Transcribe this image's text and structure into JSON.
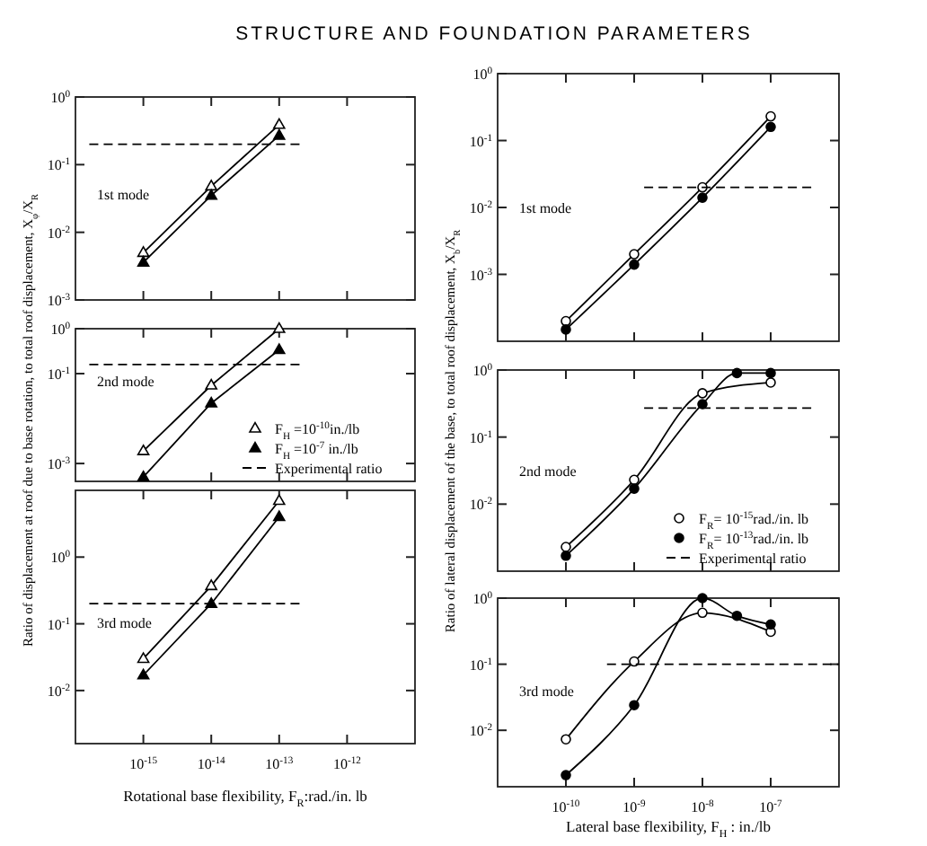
{
  "chart_data": [
    {
      "type": "line",
      "title": "STRUCTURE AND FOUNDATION PARAMETERS",
      "log": "xy",
      "xlim": [
        1e-16,
        1e-11
      ],
      "ylim": [
        0.001,
        1
      ],
      "xticks": [
        1e-15,
        1e-14,
        1e-13,
        1e-12
      ],
      "yticks": [
        {
          "value": 1,
          "label": "10$^{0}$"
        },
        {
          "value": 0.1,
          "label": "10$^{-1}$"
        },
        {
          "value": 0.01,
          "label": "10$^{-2}$"
        },
        {
          "value": 0.001,
          "label": "10$^{-3}$"
        }
      ],
      "tick_labels": "y",
      "annotations": [
        "1st mode"
      ],
      "series": [
        {
          "color": "#000000",
          "marker": "triangle",
          "x": [
            1e-15,
            1e-14,
            1e-13
          ],
          "values": [
            0.005,
            0.048,
            0.39
          ]
        },
        {
          "color": "#000000",
          "marker": "triangle",
          "x": [
            1e-15,
            1e-14,
            1e-13
          ],
          "values": [
            0.0036,
            0.035,
            0.27
          ]
        },
        {
          "color": "#000000",
          "marker": "none",
          "line_style": "dashed",
          "x": [
            1.6e-16,
            2.2e-13
          ],
          "values": [
            0.2,
            0.2
          ]
        }
      ]
    },
    {
      "type": "line",
      "log": "xy",
      "xlim": [
        1e-16,
        1e-11
      ],
      "ylim": [
        0.0004,
        1
      ],
      "xticks": [
        1e-15,
        1e-14,
        1e-13,
        1e-12
      ],
      "yticks": [
        {
          "value": 1,
          "label": "10$^{0}$"
        },
        {
          "value": 0.1,
          "label": "10$^{-1}$"
        },
        {
          "value": 0.001,
          "label": "10$^{-3}$"
        }
      ],
      "tick_labels": "y",
      "legend": "bottom right",
      "ylabel": "Ratio of displacement at roof due to base rotation, to total roof displacement, X$_{φ}$/X$_{R}$",
      "annotations": [
        "2nd mode"
      ],
      "series": [
        {
          "name": "F$_{H}$ =10$^{-10}$in./lb",
          "color": "#000000",
          "marker": "triangle",
          "x": [
            1e-15,
            1e-14,
            1e-13
          ],
          "values": [
            0.0019,
            0.055,
            1.0
          ]
        },
        {
          "name": "F$_{H}$ =10$^{-7}$ in./lb",
          "color": "#000000",
          "marker": "triangle",
          "x": [
            1e-15,
            1e-14,
            1e-13
          ],
          "values": [
            0.0005,
            0.022,
            0.34
          ]
        },
        {
          "name": "Experimental ratio",
          "color": "#000000",
          "marker": "none",
          "line_style": "dashed",
          "x": [
            1.6e-16,
            2.2e-13
          ],
          "values": [
            0.16,
            0.16
          ]
        }
      ]
    },
    {
      "type": "line",
      "log": "xy",
      "xlim": [
        1e-16,
        1e-11
      ],
      "ylim": [
        0.0016,
        10
      ],
      "xticks": [
        {
          "value": 1e-15,
          "label": "10$^{-15}$"
        },
        {
          "value": 1e-14,
          "label": "10$^{-14}$"
        },
        {
          "value": 1e-13,
          "label": "10$^{-13}$"
        },
        {
          "value": 1e-12,
          "label": "10$^{-12}$"
        }
      ],
      "yticks": [
        {
          "value": 1,
          "label": "10$^{0}$"
        },
        {
          "value": 0.1,
          "label": "10$^{-1}$"
        },
        {
          "value": 0.01,
          "label": "10$^{-2}$"
        }
      ],
      "xlabel": "Rotational base flexibility, F$_{R}$:rad./in. lb",
      "annotations": [
        "3rd mode"
      ],
      "series": [
        {
          "color": "#000000",
          "marker": "triangle",
          "x": [
            1e-15,
            1e-14,
            1e-13
          ],
          "values": [
            0.03,
            0.37,
            7
          ]
        },
        {
          "color": "#000000",
          "marker": "triangle",
          "x": [
            1e-15,
            1e-14,
            1e-13
          ],
          "values": [
            0.017,
            0.2,
            4
          ]
        },
        {
          "color": "#000000",
          "marker": "none",
          "line_style": "dashed",
          "x": [
            1.6e-16,
            2.2e-13
          ],
          "values": [
            0.2,
            0.2
          ]
        }
      ]
    },
    {
      "type": "line",
      "log": "xy",
      "xlim": [
        1e-11,
        1e-06
      ],
      "ylim": [
        0.0001,
        1
      ],
      "xticks": [
        1e-10,
        1e-09,
        1e-08,
        1e-07
      ],
      "yticks": [
        {
          "value": 1,
          "label": "10$^{0}$"
        },
        {
          "value": 0.1,
          "label": "10$^{-1}$"
        },
        {
          "value": 0.01,
          "label": "10$^{-2}$"
        },
        {
          "value": 0.001,
          "label": "10$^{-3}$"
        }
      ],
      "tick_labels": "y",
      "annotations": [
        "1st mode"
      ],
      "series": [
        {
          "color": "#000000",
          "marker": "circle",
          "x": [
            1e-10,
            1e-09,
            1e-08,
            1e-07
          ],
          "values": [
            0.0002,
            0.002,
            0.02,
            0.23
          ]
        },
        {
          "color": "#000000",
          "marker": "circle",
          "x": [
            1e-10,
            1e-09,
            1e-08,
            1e-07
          ],
          "values": [
            0.00015,
            0.0014,
            0.014,
            0.16
          ]
        },
        {
          "color": "#000000",
          "marker": "none",
          "line_style": "dashed",
          "x": [
            1.4e-09,
            4e-07
          ],
          "values": [
            0.02,
            0.02
          ]
        }
      ]
    },
    {
      "type": "line",
      "log": "xy",
      "xlim": [
        1e-11,
        1e-06
      ],
      "ylim": [
        0.001,
        1
      ],
      "xticks": [
        1e-10,
        1e-09,
        1e-08,
        1e-07
      ],
      "yticks": [
        {
          "value": 1,
          "label": "10$^{0}$"
        },
        {
          "value": 0.1,
          "label": "10$^{-1}$"
        },
        {
          "value": 0.01,
          "label": "10$^{-2}$"
        }
      ],
      "tick_labels": "y",
      "legend": "bottom right",
      "ylabel": "Ratio of lateral displacement of the base, to total roof displacement, X$_{b}$/X$_{R}$",
      "annotations": [
        "2nd mode"
      ],
      "series": [
        {
          "name": "F$_{R}$= 10$^{-15}$rad./in. lb",
          "color": "#000000",
          "marker": "circle",
          "x": [
            1e-10,
            1e-09,
            1e-08,
            1e-07
          ],
          "values": [
            0.0023,
            0.023,
            0.45,
            0.65
          ]
        },
        {
          "name": "F$_{R}$= 10$^{-13}$rad./in. lb",
          "color": "#000000",
          "marker": "circle",
          "x": [
            1e-10,
            1e-09,
            1e-08,
            3.2e-08,
            1e-07
          ],
          "values": [
            0.0017,
            0.017,
            0.31,
            0.9,
            0.9
          ]
        },
        {
          "name": "Experimental ratio",
          "color": "#000000",
          "marker": "none",
          "line_style": "dashed",
          "x": [
            1.4e-09,
            4e-07
          ],
          "values": [
            0.27,
            0.27
          ]
        }
      ]
    },
    {
      "type": "line",
      "log": "xy",
      "xlim": [
        1e-11,
        1e-06
      ],
      "ylim": [
        0.0014,
        1
      ],
      "xticks": [
        {
          "value": 1e-10,
          "label": "10$^{-10}$"
        },
        {
          "value": 1e-09,
          "label": "10$^{-9}$"
        },
        {
          "value": 1e-08,
          "label": "10$^{-8}$"
        },
        {
          "value": 1e-07,
          "label": "10$^{-7}$"
        }
      ],
      "yticks": [
        {
          "value": 1,
          "label": "10$^{0}$"
        },
        {
          "value": 0.1,
          "label": "10$^{-1}$"
        },
        {
          "value": 0.01,
          "label": "10$^{-2}$"
        }
      ],
      "xlabel": "Lateral base flexibility, F$_{H}$ : in./lb",
      "annotations": [
        "3rd mode"
      ],
      "series": [
        {
          "color": "#000000",
          "marker": "circle",
          "x": [
            1e-10,
            1e-09,
            1e-08,
            1e-07
          ],
          "values": [
            0.0073,
            0.11,
            0.6,
            0.31
          ]
        },
        {
          "color": "#000000",
          "marker": "circle",
          "x": [
            1e-10,
            1e-09,
            1e-08,
            3.2e-08,
            1e-07
          ],
          "values": [
            0.0021,
            0.024,
            1.0,
            0.54,
            0.4
          ]
        },
        {
          "color": "#000000",
          "marker": "none",
          "line_style": "dashed",
          "x": [
            4e-10,
            1e-06
          ],
          "values": [
            0.1,
            0.1
          ]
        }
      ]
    }
  ]
}
